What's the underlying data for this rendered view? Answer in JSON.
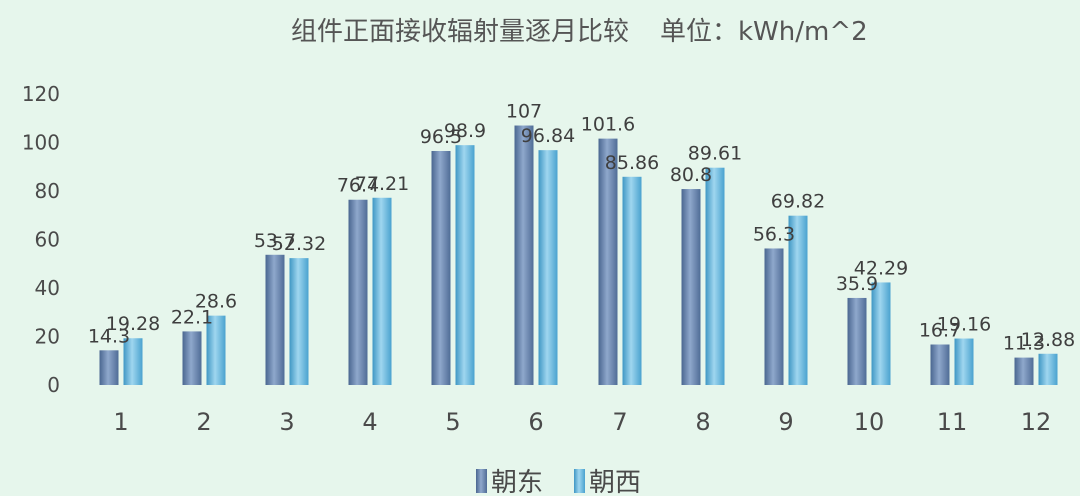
{
  "chart_data": {
    "type": "bar",
    "title": "组件正面接收辐射量逐月比较",
    "unit_label": "单位：kWh/m^2",
    "categories": [
      "1",
      "2",
      "3",
      "4",
      "5",
      "6",
      "7",
      "8",
      "9",
      "10",
      "11",
      "12"
    ],
    "series": [
      {
        "name": "朝东",
        "values": [
          14.3,
          22.1,
          53.7,
          76.4,
          96.5,
          107,
          101.6,
          80.8,
          56.3,
          35.9,
          16.7,
          11.3
        ],
        "labels": [
          "14.3",
          "22.1",
          "53.7",
          "76.4",
          "96.5",
          "107",
          "101.6",
          "80.8",
          "56.3",
          "35.9",
          "16.7",
          "11.3"
        ],
        "color": "#6a86b0"
      },
      {
        "name": "朝西",
        "values": [
          19.28,
          28.6,
          52.32,
          77.21,
          98.9,
          96.84,
          85.86,
          89.61,
          69.82,
          42.29,
          19.16,
          12.88
        ],
        "labels": [
          "19.28",
          "28.6",
          "52.32",
          "77.21",
          "98.9",
          "96.84",
          "85.86",
          "89.61",
          "69.82",
          "42.29",
          "19.16",
          "12.88"
        ],
        "color": "#63b6de"
      }
    ],
    "ylim": [
      0,
      120
    ],
    "yticks": [
      "0",
      "20",
      "40",
      "60",
      "80",
      "100",
      "120"
    ],
    "grid": false,
    "legend": "bottom"
  }
}
